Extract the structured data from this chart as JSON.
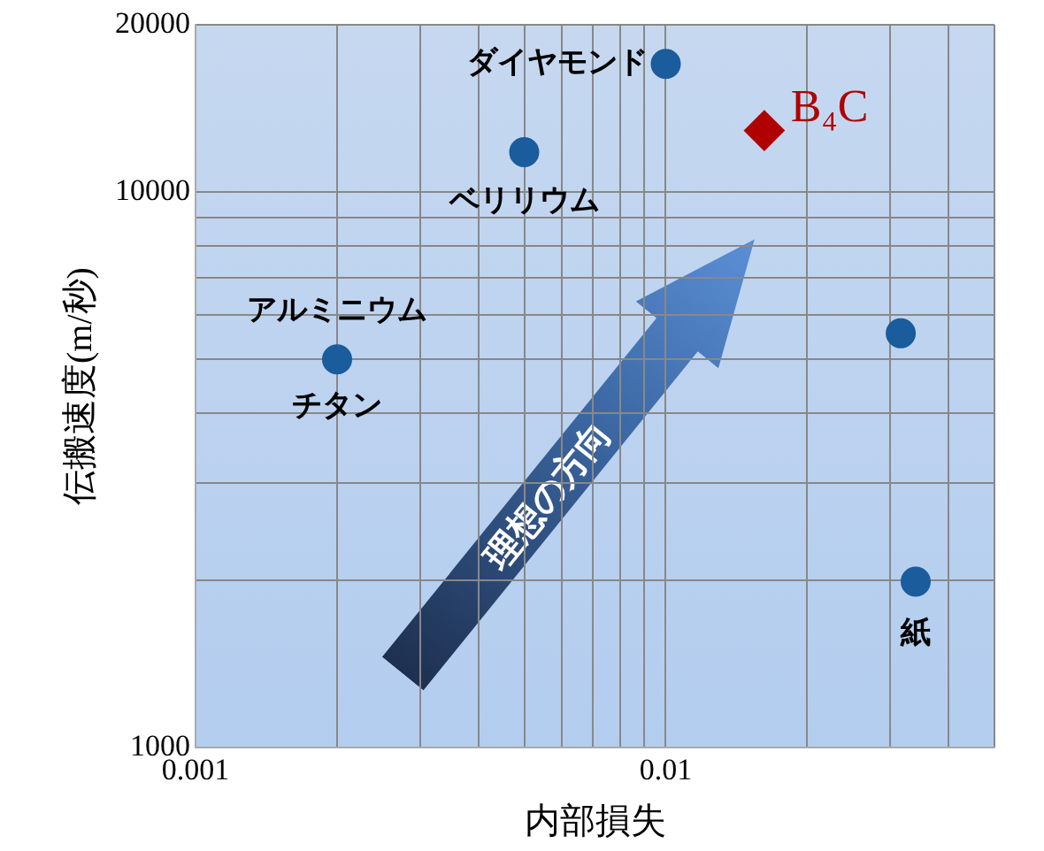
{
  "chart_data": {
    "type": "scatter",
    "xlabel": "内部損失",
    "ylabel": "伝搬速度(m/秒)",
    "log": "xy",
    "xlim": [
      0.001,
      0.05
    ],
    "ylim": [
      1000,
      20000
    ],
    "xticks": [
      0.001,
      {
        "value": 0.002,
        "label": null
      },
      {
        "value": 0.003,
        "label": null
      },
      {
        "value": 0.004,
        "label": null
      },
      {
        "value": 0.005,
        "label": null
      },
      {
        "value": 0.006,
        "label": null
      },
      {
        "value": 0.007,
        "label": null
      },
      {
        "value": 0.008,
        "label": null
      },
      {
        "value": 0.009,
        "label": null
      },
      0.01,
      {
        "value": 0.02,
        "label": null
      },
      {
        "value": 0.03,
        "label": null
      },
      {
        "value": 0.04,
        "label": null
      },
      {
        "value": 0.05,
        "label": null
      }
    ],
    "yticks": [
      1000,
      {
        "value": 2000,
        "label": null
      },
      {
        "value": 3000,
        "label": null
      },
      {
        "value": 4000,
        "label": null
      },
      {
        "value": 5000,
        "label": null
      },
      {
        "value": 6000,
        "label": null
      },
      {
        "value": 7000,
        "label": null
      },
      {
        "value": 8000,
        "label": null
      },
      {
        "value": 9000,
        "label": null
      },
      10000,
      20000
    ],
    "grid": true,
    "legend": false,
    "series": [
      {
        "color": "#1a5c9c",
        "marker": "circle",
        "x": [
          0.01,
          0.005,
          0.002,
          0.0316,
          0.034
        ],
        "values": [
          17000,
          11800,
          5000,
          5570,
          1990
        ]
      },
      {
        "name": "B₄C",
        "color": "#b00000",
        "marker": "diamond",
        "x": [
          0.0162
        ],
        "values": [
          12900
        ]
      }
    ],
    "annotations": [
      {
        "text": "ダイヤモンド",
        "x": 0.01,
        "y": 17000
      },
      {
        "text": "ベリリウム",
        "x": 0.005,
        "y": 11800
      },
      {
        "text": "アルミニウム",
        "x": 0.002,
        "y": 5000
      },
      {
        "text": "チタン",
        "x": 0.002,
        "y": 5000
      },
      {
        "text": "紙",
        "x": 0.034,
        "y": 1990
      },
      "理想の方向"
    ]
  }
}
